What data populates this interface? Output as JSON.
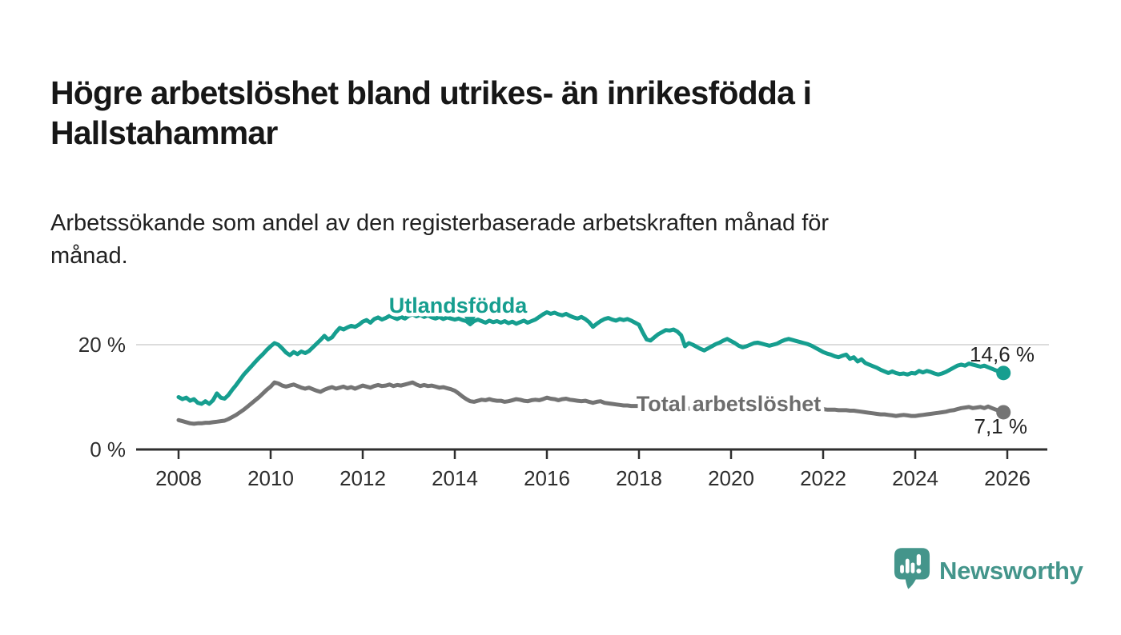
{
  "header": {
    "title_lines": [
      "Högre arbetslöshet bland utrikes- än inrikesfödda i",
      "Hallstahammar"
    ],
    "subtitle_lines": [
      "Arbetssökande som andel av den registerbaserade arbetskraften månad för",
      "månad."
    ]
  },
  "chart_data": {
    "type": "line",
    "title": "Högre arbetslöshet bland utrikes- än inrikesfödda i Hallstahammar",
    "subtitle": "Arbetssökande som andel av den registerbaserade arbetskraften månad för månad.",
    "unit": "%",
    "grid": "y-only",
    "x_axis": {
      "range": [
        2007.1,
        2026.9
      ],
      "ticks": [
        2008,
        2010,
        2012,
        2014,
        2016,
        2018,
        2020,
        2022,
        2024,
        2026
      ],
      "tick_labels": [
        "2008",
        "2010",
        "2012",
        "2014",
        "2016",
        "2018",
        "2020",
        "2022",
        "2024",
        "2026"
      ]
    },
    "y_axis": {
      "range": [
        0,
        28
      ],
      "ticks": [
        {
          "value": 20,
          "label": "20 %"
        },
        {
          "value": 0,
          "label": "0 %"
        }
      ]
    },
    "series": [
      {
        "name": "Utlandsfödda",
        "color": "#169e8f",
        "end_label": "14,6 %",
        "end_value": 14.6,
        "start_year": 2008,
        "interval_months": 1,
        "values": [
          10.0,
          9.6,
          9.9,
          9.3,
          9.6,
          8.9,
          8.7,
          9.2,
          8.7,
          9.4,
          10.7,
          9.9,
          9.7,
          10.4,
          11.4,
          12.3,
          13.3,
          14.3,
          15.1,
          15.9,
          16.7,
          17.5,
          18.2,
          19.0,
          19.7,
          20.3,
          20.0,
          19.3,
          18.5,
          18.0,
          18.6,
          18.2,
          18.7,
          18.4,
          18.8,
          19.5,
          20.2,
          20.9,
          21.7,
          21.0,
          21.4,
          22.4,
          23.2,
          22.9,
          23.3,
          23.6,
          23.4,
          23.8,
          24.4,
          24.7,
          24.2,
          24.9,
          25.2,
          24.8,
          25.1,
          25.5,
          25.2,
          24.9,
          25.3,
          25.0,
          25.5,
          25.8,
          25.4,
          25.7,
          25.3,
          25.6,
          25.2,
          25.0,
          25.3,
          24.9,
          25.2,
          25.0,
          24.8,
          25.0,
          24.7,
          24.5,
          23.9,
          24.5,
          24.8,
          24.5,
          24.2,
          24.6,
          24.3,
          24.5,
          24.2,
          24.5,
          24.1,
          24.4,
          24.0,
          24.3,
          24.6,
          24.2,
          24.5,
          24.8,
          25.3,
          25.8,
          26.2,
          25.9,
          26.1,
          25.8,
          25.6,
          25.9,
          25.5,
          25.2,
          25.0,
          25.3,
          24.9,
          24.3,
          23.4,
          24.0,
          24.5,
          24.9,
          25.1,
          24.8,
          24.6,
          24.9,
          24.7,
          24.9,
          24.6,
          24.2,
          23.8,
          22.3,
          21.0,
          20.8,
          21.4,
          22.0,
          22.4,
          22.8,
          22.7,
          22.9,
          22.5,
          21.8,
          19.7,
          20.3,
          20.0,
          19.6,
          19.2,
          18.9,
          19.3,
          19.7,
          20.1,
          20.4,
          20.8,
          21.1,
          20.7,
          20.3,
          19.8,
          19.5,
          19.7,
          20.0,
          20.3,
          20.4,
          20.2,
          20.0,
          19.8,
          20.0,
          20.2,
          20.6,
          20.9,
          21.1,
          20.9,
          20.7,
          20.5,
          20.3,
          20.1,
          19.8,
          19.4,
          19.0,
          18.6,
          18.3,
          18.1,
          17.8,
          17.6,
          17.9,
          18.1,
          17.3,
          17.6,
          16.8,
          17.2,
          16.5,
          16.2,
          15.9,
          15.6,
          15.2,
          14.9,
          14.6,
          14.9,
          14.6,
          14.4,
          14.5,
          14.3,
          14.6,
          14.5,
          15.0,
          14.7,
          15.0,
          14.8,
          14.5,
          14.3,
          14.5,
          14.8,
          15.2,
          15.6,
          16.0,
          16.2,
          16.0,
          16.4,
          16.2,
          16.0,
          15.8,
          16.0,
          15.7,
          15.4,
          15.1,
          14.9,
          14.6
        ]
      },
      {
        "name": "Total arbetslöshet",
        "color": "#747474",
        "label_color": "#6d6d6d",
        "end_label": "7,1 %",
        "end_value": 7.1,
        "start_year": 2008,
        "interval_months": 1,
        "values": [
          5.6,
          5.4,
          5.2,
          5.0,
          4.9,
          5.0,
          5.0,
          5.1,
          5.1,
          5.2,
          5.3,
          5.4,
          5.5,
          5.8,
          6.2,
          6.6,
          7.1,
          7.6,
          8.2,
          8.8,
          9.4,
          10.0,
          10.7,
          11.4,
          12.0,
          12.8,
          12.6,
          12.2,
          12.0,
          12.2,
          12.4,
          12.1,
          11.8,
          11.6,
          11.8,
          11.5,
          11.2,
          11.0,
          11.4,
          11.7,
          11.9,
          11.6,
          11.8,
          12.0,
          11.7,
          11.9,
          11.6,
          11.9,
          12.2,
          12.0,
          11.8,
          12.1,
          12.3,
          12.1,
          12.2,
          12.4,
          12.1,
          12.3,
          12.2,
          12.4,
          12.6,
          12.8,
          12.4,
          12.1,
          12.3,
          12.1,
          12.2,
          12.0,
          11.8,
          11.9,
          11.7,
          11.5,
          11.2,
          10.7,
          10.1,
          9.6,
          9.2,
          9.1,
          9.3,
          9.5,
          9.4,
          9.6,
          9.4,
          9.3,
          9.3,
          9.1,
          9.2,
          9.4,
          9.6,
          9.5,
          9.3,
          9.2,
          9.4,
          9.5,
          9.4,
          9.6,
          9.9,
          9.7,
          9.6,
          9.4,
          9.6,
          9.7,
          9.5,
          9.4,
          9.3,
          9.2,
          9.3,
          9.1,
          8.9,
          9.1,
          9.2,
          8.9,
          8.8,
          8.7,
          8.6,
          8.5,
          8.4,
          8.4,
          8.3,
          8.3,
          8.3,
          8.2,
          8.2,
          8.1,
          8.1,
          8.0,
          8.0,
          8.0,
          7.9,
          7.9,
          7.9,
          7.9,
          7.9,
          7.8,
          7.8,
          7.8,
          7.8,
          7.8,
          7.9,
          7.9,
          7.9,
          8.0,
          8.0,
          8.0,
          8.0,
          8.1,
          8.1,
          8.2,
          8.2,
          8.2,
          8.1,
          8.1,
          8.1,
          8.0,
          8.0,
          8.0,
          8.0,
          7.9,
          7.9,
          7.9,
          7.8,
          7.8,
          7.8,
          7.8,
          7.7,
          7.7,
          7.7,
          7.7,
          7.7,
          7.6,
          7.6,
          7.6,
          7.5,
          7.5,
          7.5,
          7.4,
          7.4,
          7.3,
          7.2,
          7.1,
          7.0,
          6.9,
          6.8,
          6.7,
          6.7,
          6.6,
          6.5,
          6.4,
          6.5,
          6.6,
          6.5,
          6.4,
          6.4,
          6.5,
          6.6,
          6.7,
          6.8,
          6.9,
          7.0,
          7.1,
          7.2,
          7.4,
          7.5,
          7.7,
          7.9,
          8.0,
          8.1,
          7.9,
          8.0,
          8.1,
          7.9,
          8.2,
          7.9,
          7.6,
          7.4,
          7.1
        ]
      }
    ],
    "annotations": [
      {
        "type": "triangle-down",
        "x": 2014.33,
        "y": 24.4,
        "color": "#169e8f"
      }
    ],
    "colors": {
      "grid_line": "#dcdcdc",
      "axis_line": "#2f2f2f",
      "tick_label": "#2d2d2d",
      "value_label": "#242424"
    }
  },
  "footer": {
    "brand": "Newsworthy",
    "brand_color": "#44958b"
  }
}
